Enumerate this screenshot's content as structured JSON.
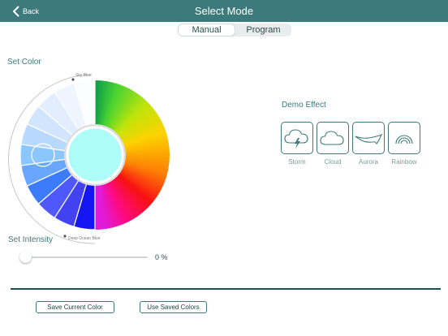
{
  "nav": {
    "back_label": "Back",
    "title": "Select Mode"
  },
  "mode_tabs": {
    "items": [
      "Manual",
      "Program"
    ],
    "active": "Manual"
  },
  "set_color": {
    "label": "Set Color",
    "wheel_start_label": "Sky Blue",
    "wheel_end_label": "Deep Ocean Blue",
    "center_color": "#aefcf7",
    "blue_segments": [
      "#fbfdff",
      "#eef5ff",
      "#e2eefe",
      "#d1e5fe",
      "#b9d8fe",
      "#8cc6fe",
      "#69a7fe",
      "#3d7bfd",
      "#4f58fd",
      "#4242f2",
      "#1616f2"
    ],
    "selected_index": 5
  },
  "intensity": {
    "label": "Set Intensity",
    "value": 0,
    "value_text": "0 %"
  },
  "demo_effect": {
    "label": "Demo Effect",
    "items": [
      {
        "label": "Storm",
        "icon": "storm-icon"
      },
      {
        "label": "Cloud",
        "icon": "cloud-icon"
      },
      {
        "label": "Aurora",
        "icon": "aurora-icon"
      },
      {
        "label": "Rainbow",
        "icon": "rainbow-icon"
      }
    ]
  },
  "footer": {
    "save_label": "Save Current Color",
    "saved_label": "Use Saved Colors"
  },
  "colors": {
    "accent": "#3d7a7b",
    "navbar": "#3d7a7b",
    "divider": "#1f4e4f"
  }
}
